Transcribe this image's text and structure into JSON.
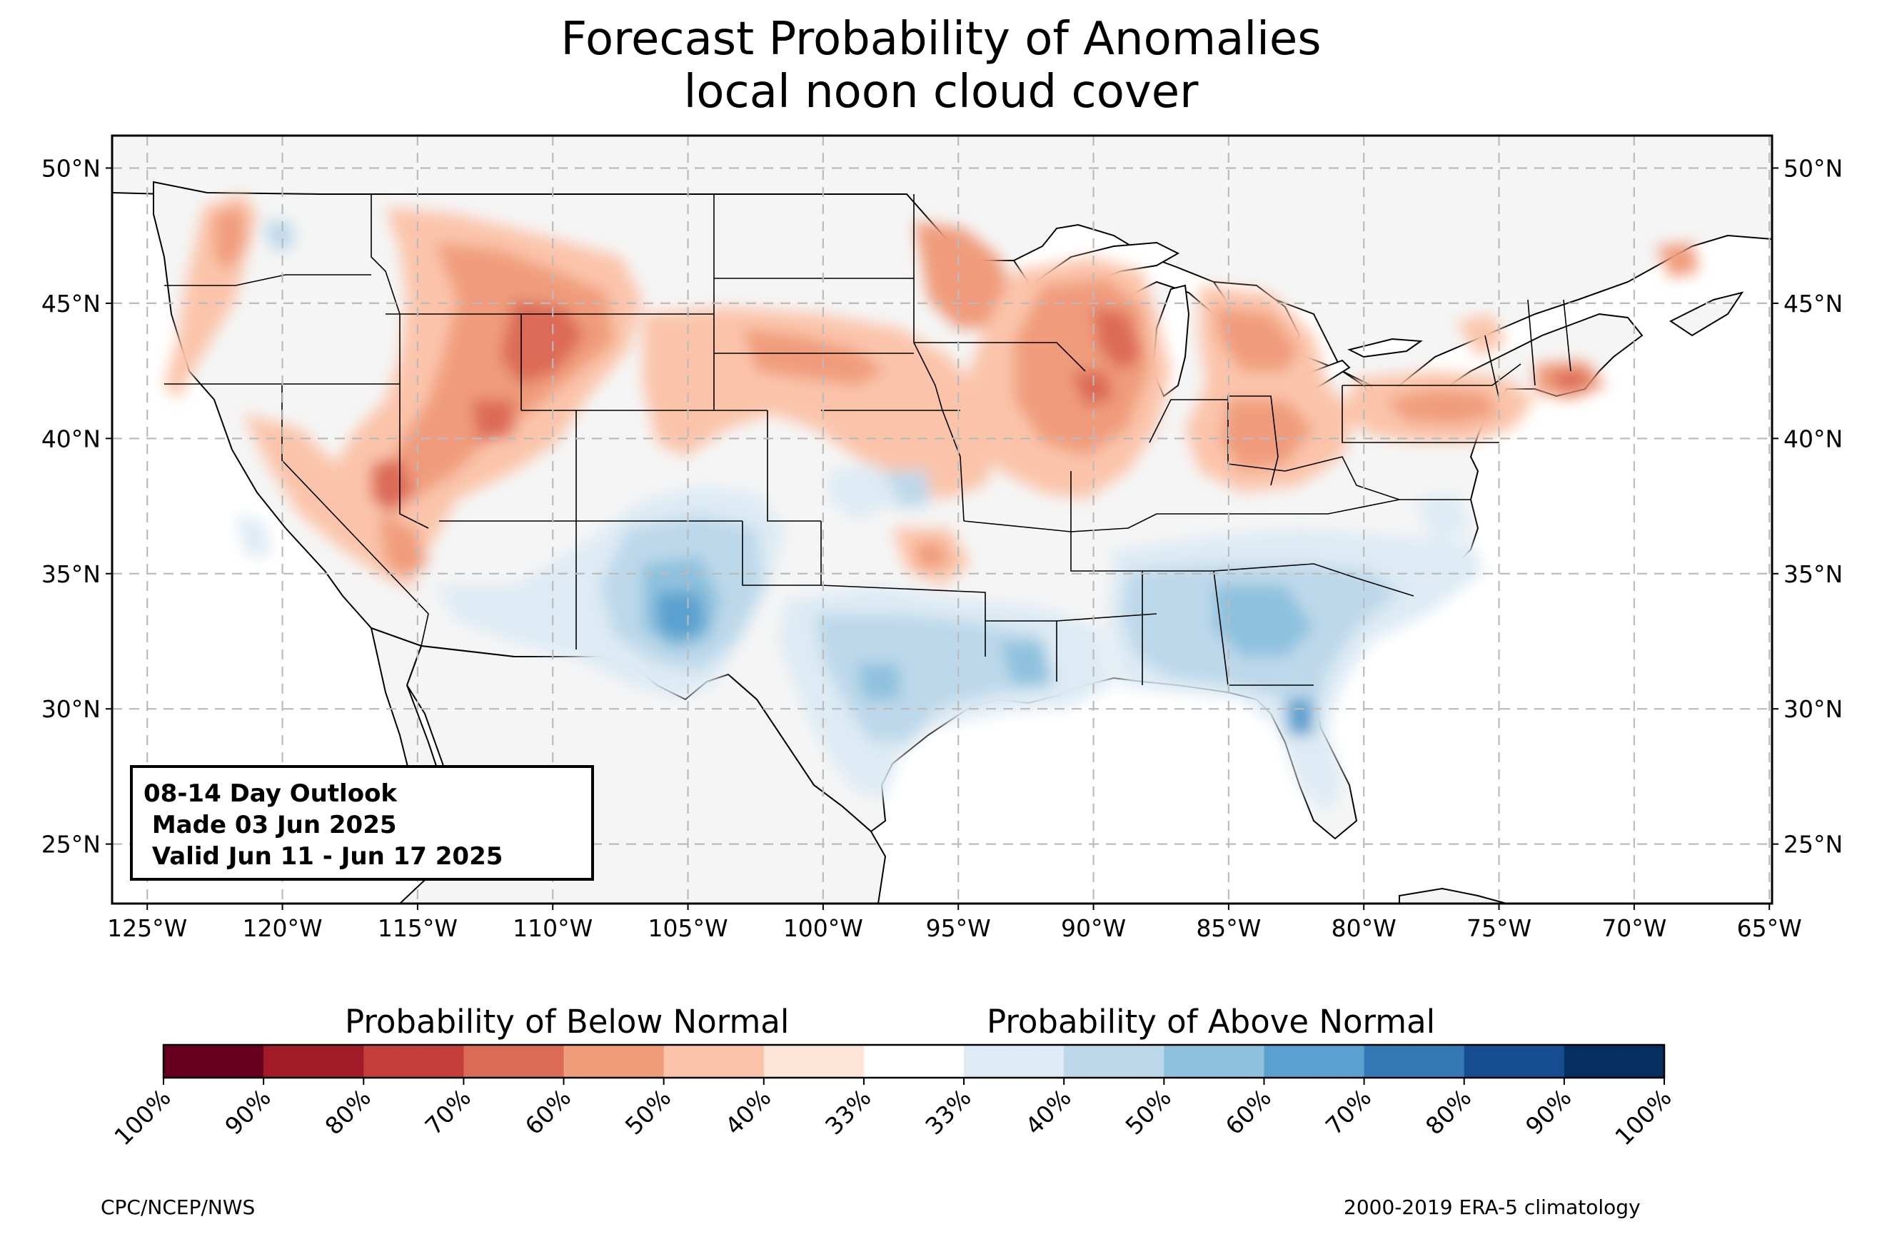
{
  "header": {
    "title_line1": "Forecast Probability of Anomalies",
    "title_line2": "local noon cloud cover"
  },
  "map": {
    "lat_labels": [
      "50°N",
      "45°N",
      "40°N",
      "35°N",
      "30°N",
      "25°N"
    ],
    "lat_values": [
      50,
      45,
      40,
      35,
      30,
      25
    ],
    "lon_labels": [
      "125°W",
      "120°W",
      "115°W",
      "110°W",
      "105°W",
      "100°W",
      "95°W",
      "90°W",
      "85°W",
      "80°W",
      "75°W",
      "70°W",
      "65°W"
    ],
    "lon_values": [
      -125,
      -120,
      -115,
      -110,
      -105,
      -100,
      -95,
      -90,
      -85,
      -80,
      -75,
      -70,
      -65
    ],
    "extent": {
      "lon_min": -126.3,
      "lon_max": -64.9,
      "lat_min": 22.8,
      "lat_max": 51.2
    },
    "land_color": "#f5f5f5",
    "ocean_color": "#ffffff"
  },
  "outlook_box": {
    "line1": "08-14 Day Outlook",
    "line2": " Made 03 Jun 2025",
    "line3": " Valid Jun 11 - Jun 17 2025"
  },
  "colorbar": {
    "below_label": "Probability of Below Normal",
    "above_label": "Probability of Above Normal",
    "tick_labels": [
      "100%",
      "90%",
      "80%",
      "70%",
      "60%",
      "50%",
      "40%",
      "33%",
      "33%",
      "40%",
      "50%",
      "60%",
      "70%",
      "80%",
      "90%",
      "100%"
    ],
    "colors": [
      "#67001f",
      "#a01a27",
      "#c33d3b",
      "#dc6b56",
      "#f09c7b",
      "#fbc4aa",
      "#fde4d6",
      "#ffffff",
      "#deebf4",
      "#bdd8ea",
      "#8ec1de",
      "#5aa1cf",
      "#3279b6",
      "#154d90",
      "#062f61"
    ]
  },
  "footer": {
    "left": "CPC/NCEP/NWS",
    "right": "2000-2019 ERA-5 climatology"
  }
}
